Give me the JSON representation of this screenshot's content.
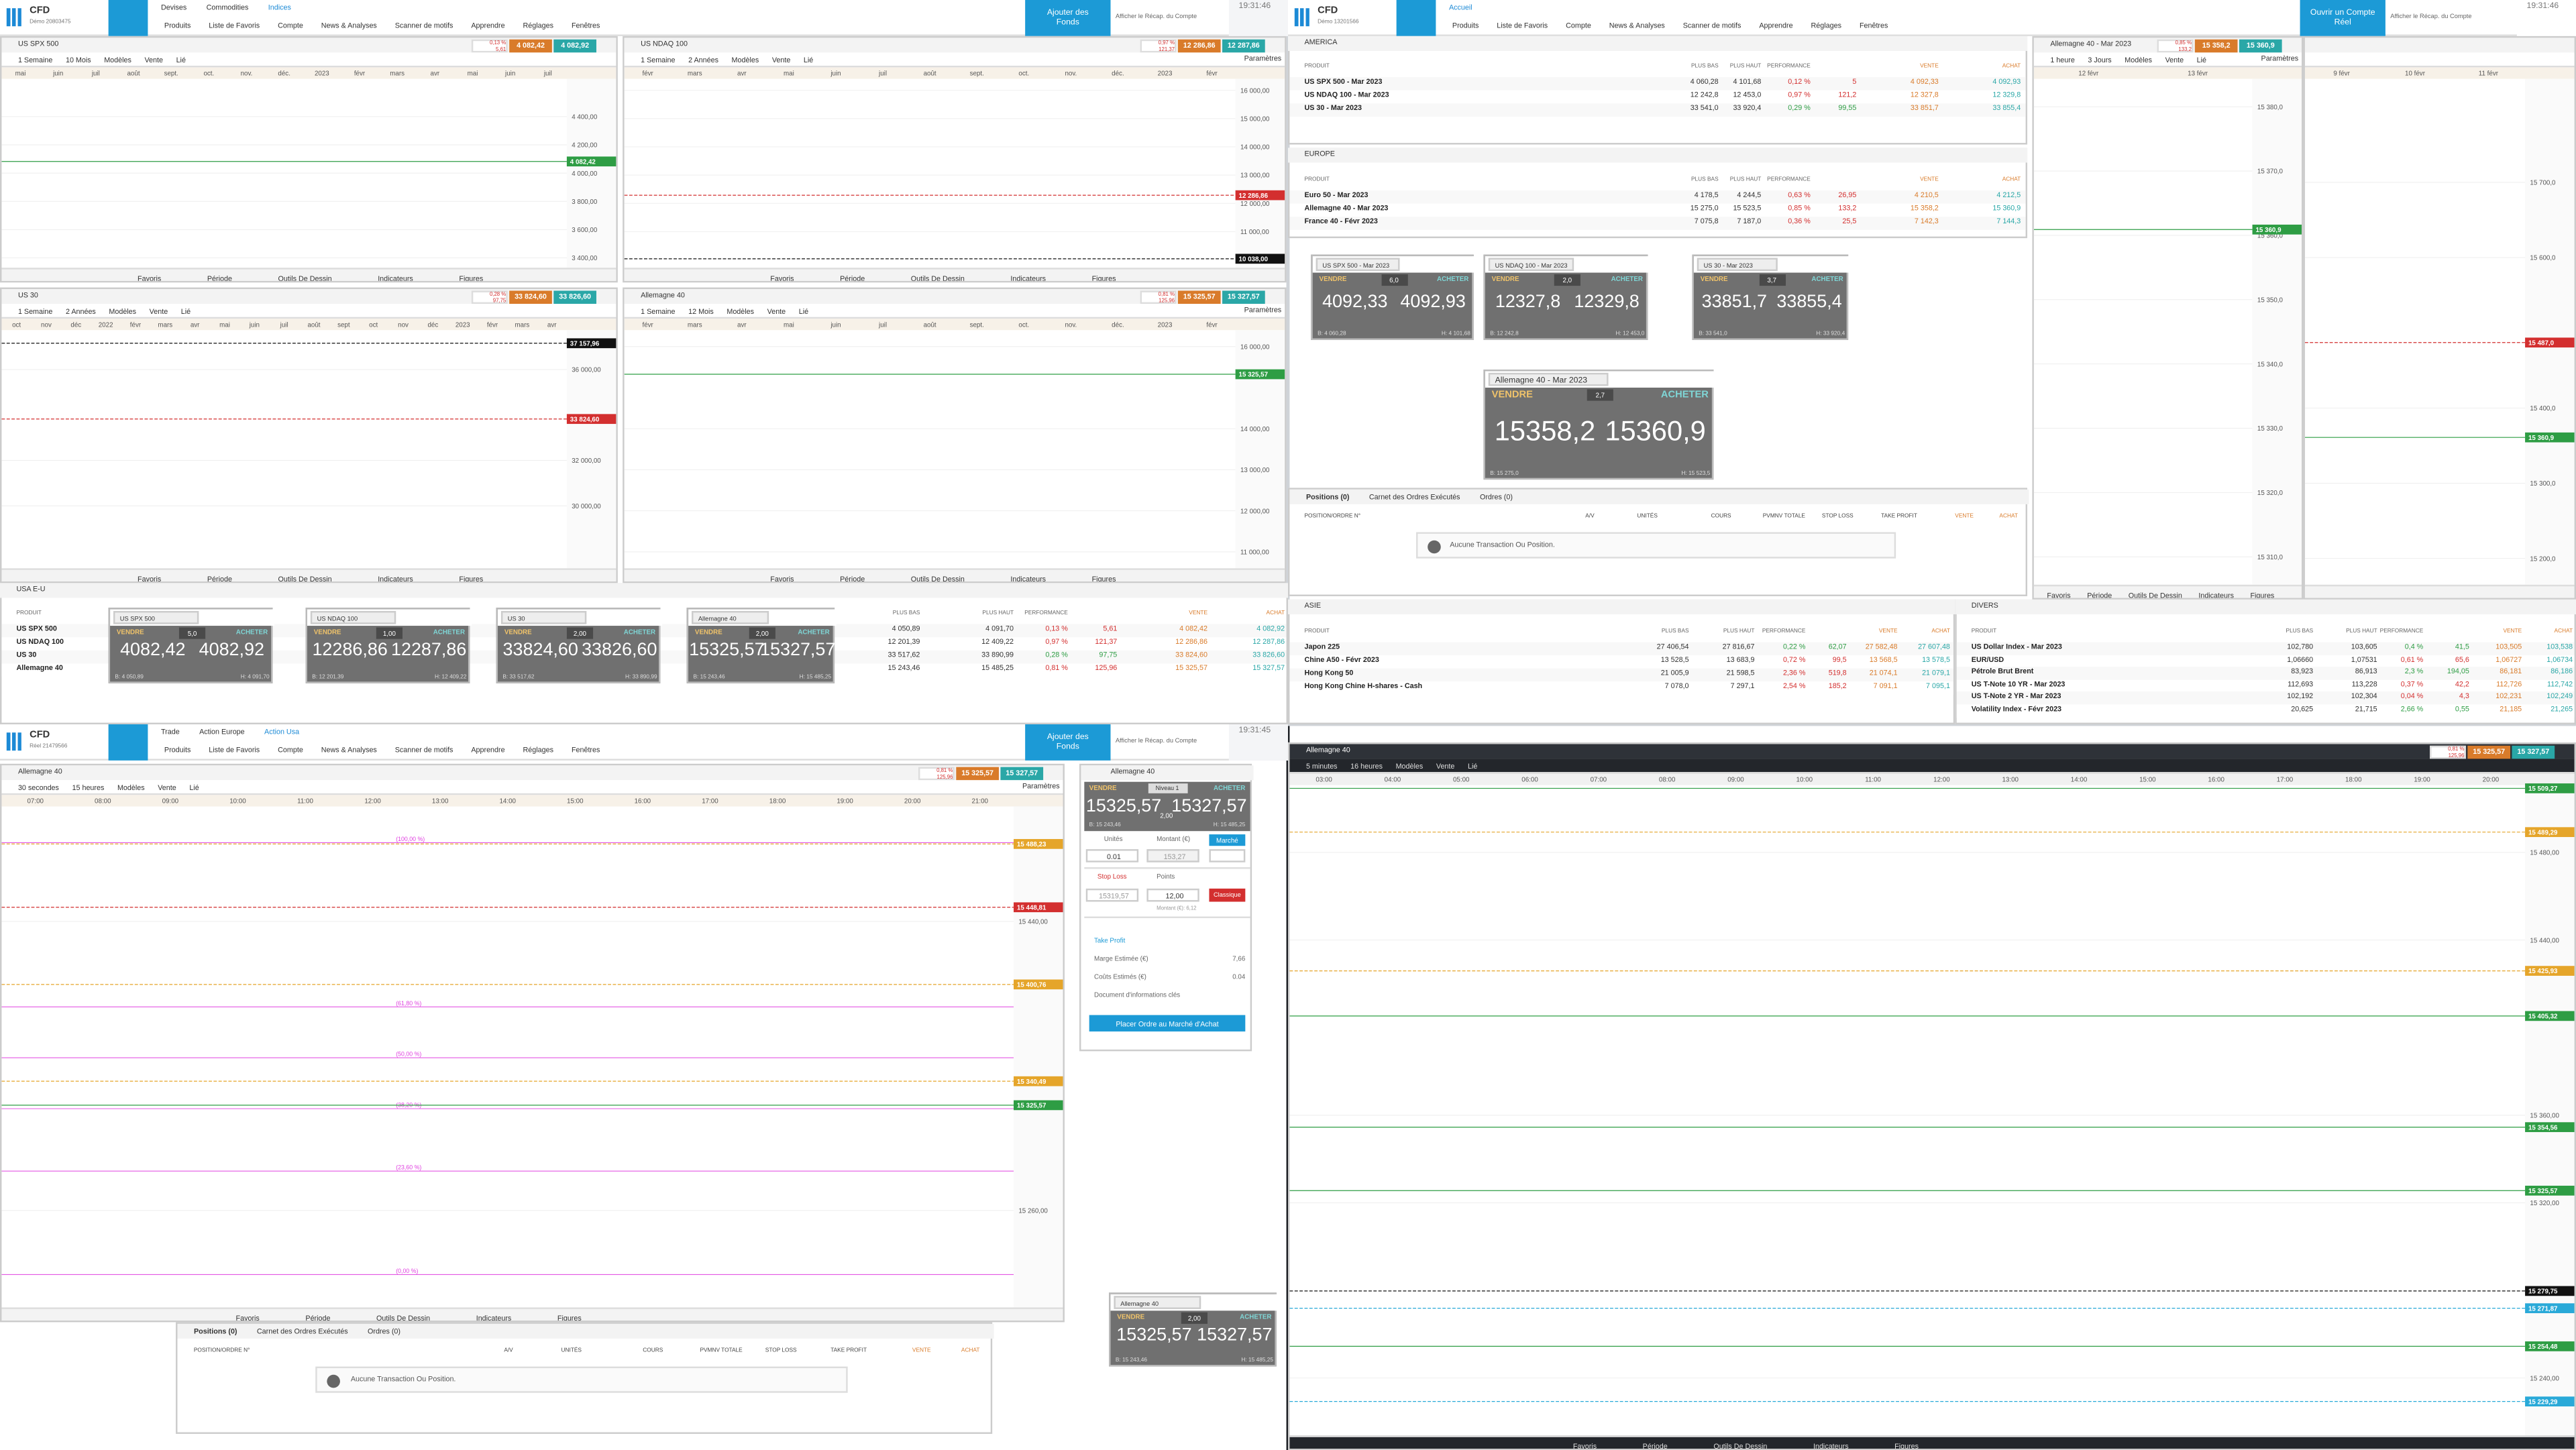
{
  "menu": [
    "Produits",
    "Liste de Favoris",
    "Compte",
    "News & Analyses",
    "Scanner de motifs",
    "Apprendre",
    "Réglages",
    "Fenêtres"
  ],
  "recap": "Afficher le Récap. du Compte",
  "headers": [
    {
      "logo": "CFD",
      "account": "Démo 20803475",
      "tabs": [
        "Devises",
        "Commodities",
        "Indices"
      ],
      "cta": "Ajouter des Fonds",
      "time": "19:31:46"
    },
    {
      "logo": "CFD",
      "account": "Démo 13201566",
      "tabs": [
        "Accueil"
      ],
      "cta": "Ouvrir un Compte Réel",
      "time": "19:31:46"
    },
    {
      "logo": "CFD",
      "account": "Réel 21479566",
      "tabs": [
        "Trade",
        "Action Europe",
        "Action Usa"
      ],
      "cta": "Ajouter des Fonds",
      "time": "19:31:45"
    }
  ],
  "toolbar": [
    "Favoris",
    "Période",
    "Outils De Dessin",
    "Indicateurs",
    "Figures"
  ],
  "chart_tools": [
    "Modèles",
    "Vente",
    "Lié"
  ],
  "parametres": "Paramètres",
  "charts": [
    {
      "title": "US SPX 500",
      "interval": "1 Semaine",
      "range": "10 Mois",
      "quote": {
        "perf": "0,13 %",
        "change": "5,61",
        "sell": "4 082,42",
        "buy": "4 082,92"
      },
      "xlabels": [
        "mai",
        "juin",
        "juil",
        "août",
        "sept.",
        "oct.",
        "nov.",
        "déc.",
        "2023",
        "févr",
        "mars",
        "avr",
        "mai",
        "juin",
        "juil"
      ],
      "ylabels": [
        "4 400,00",
        "4 200,00",
        "4 000,00",
        "3 800,00",
        "3 600,00",
        "3 400,00"
      ],
      "tags": [
        {
          "label": "4 082,42",
          "color": "#2e9d44"
        }
      ]
    },
    {
      "title": "US NDAQ 100",
      "interval": "1 Semaine",
      "range": "2 Années",
      "quote": {
        "perf": "0,97 %",
        "change": "121,37",
        "sell": "12 286,86",
        "buy": "12 287,86"
      },
      "xlabels": [
        "févr",
        "mars",
        "avr",
        "mai",
        "juin",
        "juil",
        "août",
        "sept.",
        "oct.",
        "nov.",
        "déc.",
        "2023",
        "févr"
      ],
      "ylabels": [
        "16 000,00",
        "15 000,00",
        "14 000,00",
        "13 000,00",
        "12 000,00",
        "11 000,00"
      ],
      "tags": [
        {
          "label": "12 286,86",
          "color": "#d32f2f"
        },
        {
          "label": "10 038,00",
          "color": "#111111"
        }
      ]
    },
    {
      "title": "US 30",
      "interval": "1 Semaine",
      "range": "2 Années",
      "quote": {
        "perf": "0,28 %",
        "change": "97,75",
        "sell": "33 824,60",
        "buy": "33 826,60"
      },
      "xlabels": [
        "oct",
        "nov",
        "déc",
        "2022",
        "févr",
        "mars",
        "avr",
        "mai",
        "juin",
        "juil",
        "août",
        "sept",
        "oct",
        "nov",
        "déc",
        "2023",
        "févr",
        "mars",
        "avr"
      ],
      "ylabels": [
        "36 000,00",
        "32 000,00",
        "30 000,00"
      ],
      "tags": [
        {
          "label": "37 157,96",
          "color": "#111111"
        },
        {
          "label": "33 824,60",
          "color": "#d32f2f"
        }
      ]
    },
    {
      "title": "Allemagne 40",
      "interval": "1 Semaine",
      "range": "12 Mois",
      "quote": {
        "perf": "0,81 %",
        "change": "125,96",
        "sell": "15 325,57",
        "buy": "15 327,57"
      },
      "xlabels": [
        "févr",
        "mars",
        "avr",
        "mai",
        "juin",
        "juil",
        "août",
        "sept.",
        "oct.",
        "nov.",
        "déc.",
        "2023",
        "févr"
      ],
      "ylabels": [
        "16 000,00",
        "14 000,00",
        "13 000,00",
        "12 000,00",
        "11 000,00"
      ],
      "tags": [
        {
          "label": "15 325,57",
          "color": "#2e9d44"
        }
      ]
    },
    {
      "title": "Allemagne 40 - Mar 2023",
      "interval": "1 heure",
      "range": "3 Jours",
      "quote": {
        "perf": "0,85 %",
        "change": "133,2",
        "sell": "15 358,2",
        "buy": "15 360,9"
      },
      "xlabels": [
        "12 févr",
        "13 févr"
      ],
      "ylabels": [
        "15 380,0",
        "15 370,0",
        "15 360,0",
        "15 350,0",
        "15 340,0",
        "15 330,0",
        "15 320,0",
        "15 310,0"
      ],
      "tags": [
        {
          "label": "15 360,9",
          "color": "#2e9d44"
        }
      ]
    },
    {
      "xlabels": [
        "9 févr",
        "10 févr",
        "11 févr"
      ],
      "ylabels": [
        "15 700,0",
        "15 600,0",
        "15 400,0",
        "15 300,0",
        "15 200,0"
      ],
      "tags": [
        {
          "label": "15 487,0",
          "color": "#d32f2f"
        },
        {
          "label": "15 360,9",
          "color": "#2e9d44"
        }
      ]
    },
    {
      "title": "Allemagne 40",
      "interval": "30 secondes",
      "range": "15 heures",
      "quote": {
        "perf": "0,81 %",
        "change": "125,96",
        "sell": "15 325,57",
        "buy": "15 327,57"
      },
      "xlabels": [
        "07:00",
        "08:00",
        "09:00",
        "10:00",
        "11:00",
        "12:00",
        "13:00",
        "14:00",
        "15:00",
        "16:00",
        "17:00",
        "18:00",
        "19:00",
        "20:00",
        "21:00"
      ],
      "ylabels": [
        "15 440,00",
        "15 260,00"
      ],
      "tags": [
        {
          "label": "15 488,23",
          "color": "#e5a52a"
        },
        {
          "label": "15 448,81",
          "color": "#d32f2f"
        },
        {
          "label": "15 400,76",
          "color": "#e5a52a"
        },
        {
          "label": "15 340,49",
          "color": "#e5a52a"
        },
        {
          "label": "15 325,57",
          "color": "#2e9d44"
        }
      ],
      "annotations": [
        "(100,00 %)",
        "(61,80 %)",
        "(50,00 %)",
        "(38,20 %)",
        "(23,60 %)",
        "(0,00 %)"
      ]
    },
    {
      "title": "Allemagne 40",
      "interval": "5 minutes",
      "range": "16 heures",
      "quote": {
        "perf": "0,81 %",
        "change": "125,96",
        "sell": "15 325,57",
        "buy": "15 327,57"
      },
      "xlabels": [
        "03:00",
        "04:00",
        "05:00",
        "06:00",
        "07:00",
        "08:00",
        "09:00",
        "10:00",
        "11:00",
        "12:00",
        "13:00",
        "14:00",
        "15:00",
        "16:00",
        "17:00",
        "18:00",
        "19:00",
        "20:00"
      ],
      "ylabels": [
        "15 480,00",
        "15 440,00",
        "15 360,00",
        "15 320,00",
        "15 240,00"
      ],
      "tags": [
        {
          "label": "15 509,27",
          "color": "#2e9d44"
        },
        {
          "label": "15 489,29",
          "color": "#e5a52a"
        },
        {
          "label": "15 425,93",
          "color": "#e5a52a"
        },
        {
          "label": "15 405,32",
          "color": "#2e9d44"
        },
        {
          "label": "15 354,56",
          "color": "#2e9d44"
        },
        {
          "label": "15 325,57",
          "color": "#2e9d44"
        },
        {
          "label": "15 279,75",
          "color": "#111111"
        },
        {
          "label": "15 271,87",
          "color": "#29a9d8"
        },
        {
          "label": "15 254,48",
          "color": "#2e9d44"
        },
        {
          "label": "15 229,29",
          "color": "#29a9d8"
        }
      ]
    }
  ],
  "table_columns": [
    "PRODUIT",
    "PLUS BAS",
    "PLUS HAUT",
    "PERFORMANCE",
    "VENTE",
    "ACHAT"
  ],
  "tables": [
    {
      "title": "USA E-U",
      "rows": [
        {
          "cells": [
            "US SPX 500",
            "4 050,89",
            "4 091,70",
            "0,13 %",
            "5,61",
            "4 082,42",
            "4 082,92"
          ],
          "color": "#d32f2f"
        },
        {
          "cells": [
            "US NDAQ 100",
            "12 201,39",
            "12 409,22",
            "0,97 %",
            "121,37",
            "12 286,86",
            "12 287,86"
          ],
          "color": "#d32f2f"
        },
        {
          "cells": [
            "US 30",
            "33 517,62",
            "33 890,99",
            "0,28 %",
            "97,75",
            "33 824,60",
            "33 826,60"
          ],
          "color": "#2e9d44"
        },
        {
          "cells": [
            "Allemagne 40",
            "15 243,46",
            "15 485,25",
            "0,81 %",
            "125,96",
            "15 325,57",
            "15 327,57"
          ],
          "color": "#d32f2f"
        }
      ]
    },
    {
      "title": "AMERICA",
      "rows": [
        {
          "cells": [
            "US SPX 500 - Mar 2023",
            "4 060,28",
            "4 101,68",
            "0,12 %",
            "5",
            "4 092,33",
            "4 092,93"
          ],
          "color": "#d32f2f"
        },
        {
          "cells": [
            "US NDAQ 100 - Mar 2023",
            "12 242,8",
            "12 453,0",
            "0,97 %",
            "121,2",
            "12 327,8",
            "12 329,8"
          ],
          "color": "#d32f2f"
        },
        {
          "cells": [
            "US 30 - Mar 2023",
            "33 541,0",
            "33 920,4",
            "0,29 %",
            "99,55",
            "33 851,7",
            "33 855,4"
          ],
          "color": "#2e9d44"
        }
      ]
    },
    {
      "title": "EUROPE",
      "rows": [
        {
          "cells": [
            "Euro 50 - Mar 2023",
            "4 178,5",
            "4 244,5",
            "0,63 %",
            "26,95",
            "4 210,5",
            "4 212,5"
          ],
          "color": "#d32f2f"
        },
        {
          "cells": [
            "Allemagne 40 - Mar 2023",
            "15 275,0",
            "15 523,5",
            "0,85 %",
            "133,2",
            "15 358,2",
            "15 360,9"
          ],
          "color": "#d32f2f"
        },
        {
          "cells": [
            "France 40 - Févr 2023",
            "7 075,8",
            "7 187,0",
            "0,36 %",
            "25,5",
            "7 142,3",
            "7 144,3"
          ],
          "color": "#d32f2f"
        }
      ]
    },
    {
      "title": "ASIE",
      "rows": [
        {
          "cells": [
            "Japon 225",
            "27 406,54",
            "27 816,67",
            "0,22 %",
            "62,07",
            "27 582,48",
            "27 607,48"
          ],
          "color": "#2e9d44"
        },
        {
          "cells": [
            "Chine A50 - Févr 2023",
            "13 528,5",
            "13 683,9",
            "0,72 %",
            "99,5",
            "13 568,5",
            "13 578,5"
          ],
          "color": "#d32f2f"
        },
        {
          "cells": [
            "Hong Kong 50",
            "21 005,9",
            "21 598,5",
            "2,36 %",
            "519,8",
            "21 074,1",
            "21 079,1"
          ],
          "color": "#d32f2f"
        },
        {
          "cells": [
            "Hong Kong Chine H-shares - Cash",
            "7 078,0",
            "7 297,1",
            "2,54 %",
            "185,2",
            "7 091,1",
            "7 095,1"
          ],
          "color": "#d32f2f"
        }
      ]
    },
    {
      "title": "DIVERS",
      "rows": [
        {
          "cells": [
            "US Dollar Index - Mar 2023",
            "102,780",
            "103,605",
            "0,4 %",
            "41,5",
            "103,505",
            "103,538"
          ],
          "color": "#2e9d44"
        },
        {
          "cells": [
            "EUR/USD",
            "1,06660",
            "1,07531",
            "0,61 %",
            "65,6",
            "1,06727",
            "1,06734"
          ],
          "color": "#d32f2f"
        },
        {
          "cells": [
            "Pétrole Brut Brent",
            "83,923",
            "86,913",
            "2,3 %",
            "194,05",
            "86,181",
            "86,186"
          ],
          "color": "#2e9d44"
        },
        {
          "cells": [
            "US T-Note 10 YR - Mar 2023",
            "112,693",
            "113,228",
            "0,37 %",
            "42,2",
            "112,726",
            "112,742"
          ],
          "color": "#d32f2f"
        },
        {
          "cells": [
            "US T-Note 2 YR - Mar 2023",
            "102,192",
            "102,304",
            "0,04 %",
            "4,3",
            "102,231",
            "102,249"
          ],
          "color": "#d32f2f"
        },
        {
          "cells": [
            "Volatility Index - Févr 2023",
            "20,625",
            "21,715",
            "2,66 %",
            "0,55",
            "21,185",
            "21,265"
          ],
          "color": "#2e9d44"
        }
      ]
    }
  ],
  "side_labels": {
    "sell": "VENDRE",
    "buy": "ACHETER"
  },
  "tickets": [
    {
      "name": "US SPX 500",
      "sell": "4082,42",
      "buy": "4082,92",
      "spread": "5,0",
      "low": "B: 4 050,89",
      "high": "H: 4 091,70"
    },
    {
      "name": "US NDAQ 100",
      "sell": "12286,86",
      "buy": "12287,86",
      "spread": "1,00",
      "low": "B: 12 201,39",
      "high": "H: 12 409,22"
    },
    {
      "name": "US 30",
      "sell": "33824,60",
      "buy": "33826,60",
      "spread": "2,00",
      "low": "B: 33 517,62",
      "high": "H: 33 890,99"
    },
    {
      "name": "Allemagne 40",
      "sell": "15325,57",
      "buy": "15327,57",
      "spread": "2,00",
      "low": "B: 15 243,46",
      "high": "H: 15 485,25"
    },
    {
      "name": "US SPX 500 - Mar 2023",
      "sell": "4092,33",
      "buy": "4092,93",
      "spread": "6,0",
      "low": "B: 4 060,28",
      "high": "H: 4 101,68"
    },
    {
      "name": "US NDAQ 100 - Mar 2023",
      "sell": "12327,8",
      "buy": "12329,8",
      "spread": "2,0",
      "low": "B: 12 242,8",
      "high": "H: 12 453,0"
    },
    {
      "name": "US 30 - Mar 2023",
      "sell": "33851,7",
      "buy": "33855,4",
      "spread": "3,7",
      "low": "B: 33 541,0",
      "high": "H: 33 920,4"
    },
    {
      "name": "Allemagne 40 - Mar 2023",
      "sell": "15358,2",
      "buy": "15360,9",
      "spread": "2,7",
      "low": "B: 15 275,0",
      "high": "H: 15 523,5"
    },
    {
      "name": "Allemagne 40",
      "sell": "15325,57",
      "buy": "15327,57",
      "spread": "2,00",
      "low": "B: 15 243,46",
      "high": "H: 15 485,25"
    }
  ],
  "positions": {
    "tabs": [
      "Positions (0)",
      "Carnet des Ordres Exécutés",
      "Ordres (0)"
    ],
    "columns": [
      "POSITION/ORDRE N°",
      "A/V",
      "UNITÉS",
      "COURS",
      "PVMNV TOTALE",
      "STOP LOSS",
      "TAKE PROFIT",
      "VENTE",
      "ACHAT"
    ],
    "empty": "Aucune Transaction Ou Position."
  },
  "order_ticket": {
    "name": "Allemagne 40",
    "level": "Niveau 1",
    "sell": "15325,57",
    "buy": "15327,57",
    "spread": "2,00",
    "low": "B: 15 243,46",
    "high": "H: 15 485,25",
    "units_label": "Unités",
    "amount_label": "Montant (€)",
    "mode": "Marché",
    "units": "0.01",
    "amount": "153,27",
    "stop_label": "Stop Loss",
    "points_label": "Points",
    "stop": "15319,57",
    "points": "12,00",
    "stop_type": "Classique",
    "stop_amount": "Montant (€): 6,12",
    "take_profit": "Take Profit",
    "margin_label": "Marge Estimée (€)",
    "margin": "7,66",
    "cost_label": "Coûts Estimés (€)",
    "cost": "0.04",
    "kid": "Document d'informations clés",
    "submit": "Placer Ordre au Marché d'Achat"
  }
}
